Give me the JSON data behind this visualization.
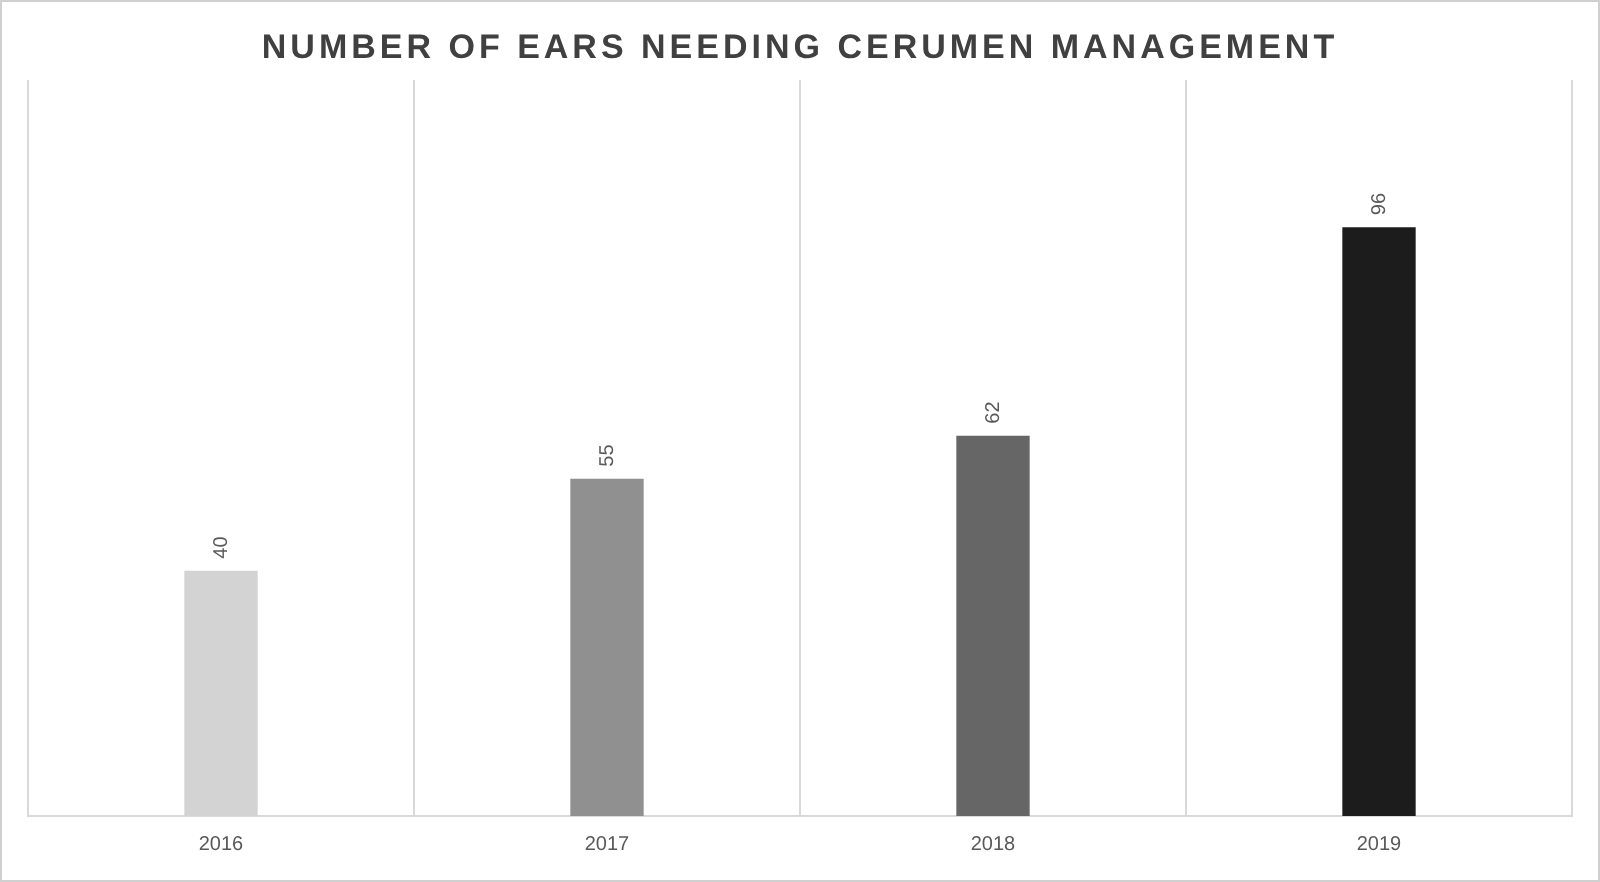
{
  "chart_data": {
    "type": "bar",
    "title": "NUMBER OF EARS NEEDING CERUMEN MANAGEMENT",
    "categories": [
      "2016",
      "2017",
      "2018",
      "2019"
    ],
    "values": [
      40,
      55,
      62,
      96
    ],
    "colors": [
      "#d3d3d3",
      "#909090",
      "#666666",
      "#1c1c1c"
    ],
    "data_labels": true,
    "grid": "x",
    "legend": false
  }
}
